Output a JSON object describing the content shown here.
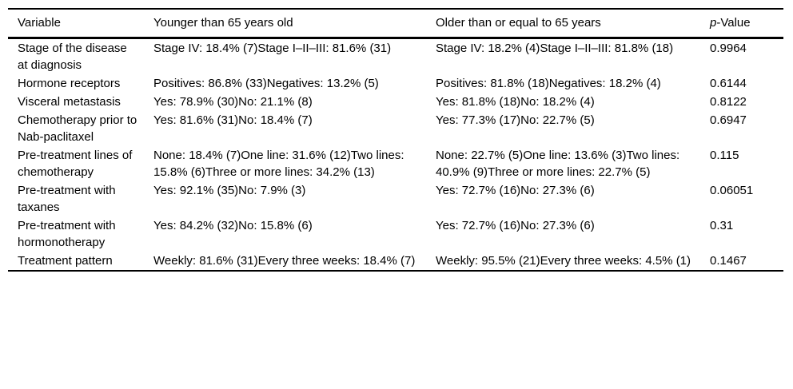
{
  "table": {
    "colors": {
      "text": "#000000",
      "border": "#000000",
      "background": "#ffffff"
    },
    "header": {
      "columns": [
        "Variable",
        "Younger than 65 years old",
        "Older than or equal to 65 years",
        "p-Value"
      ],
      "p_italic": "p",
      "p_suffix": "-Value"
    },
    "rows": [
      {
        "variable": "Stage of the disease at diagnosis",
        "younger": "Stage IV: 18.4% (7)Stage I–II–III: 81.6% (31)",
        "older": "Stage IV: 18.2% (4)Stage I–II–III: 81.8% (18)",
        "p_value": "0.9964"
      },
      {
        "variable": "Hormone receptors",
        "younger": "Positives: 86.8% (33)Negatives: 13.2% (5)",
        "older": "Positives: 81.8% (18)Negatives: 18.2% (4)",
        "p_value": "0.6144"
      },
      {
        "variable": "Visceral metastasis",
        "younger": "Yes: 78.9% (30)No: 21.1% (8)",
        "older": "Yes: 81.8% (18)No: 18.2% (4)",
        "p_value": "0.8122"
      },
      {
        "variable": "Chemotherapy prior to Nab-paclitaxel",
        "younger": "Yes: 81.6% (31)No: 18.4% (7)",
        "older": "Yes: 77.3% (17)No: 22.7% (5)",
        "p_value": "0.6947"
      },
      {
        "variable": "Pre-treatment lines of chemotherapy",
        "younger": "None: 18.4% (7)One line: 31.6% (12)Two lines: 15.8% (6)Three or more lines: 34.2% (13)",
        "older": "None: 22.7% (5)One line: 13.6% (3)Two lines: 40.9% (9)Three or more lines: 22.7% (5)",
        "p_value": "0.115"
      },
      {
        "variable": "Pre-treatment with taxanes",
        "younger": "Yes: 92.1% (35)No: 7.9% (3)",
        "older": "Yes: 72.7% (16)No: 27.3% (6)",
        "p_value": "0.06051"
      },
      {
        "variable": "Pre-treatment with hormonotherapy",
        "younger": "Yes: 84.2% (32)No: 15.8% (6)",
        "older": "Yes: 72.7% (16)No: 27.3% (6)",
        "p_value": "0.31"
      },
      {
        "variable": "Treatment pattern",
        "younger": "Weekly: 81.6% (31)Every three weeks: 18.4% (7)",
        "older": "Weekly: 95.5% (21)Every three weeks: 4.5% (1)",
        "p_value": "0.1467"
      }
    ]
  }
}
